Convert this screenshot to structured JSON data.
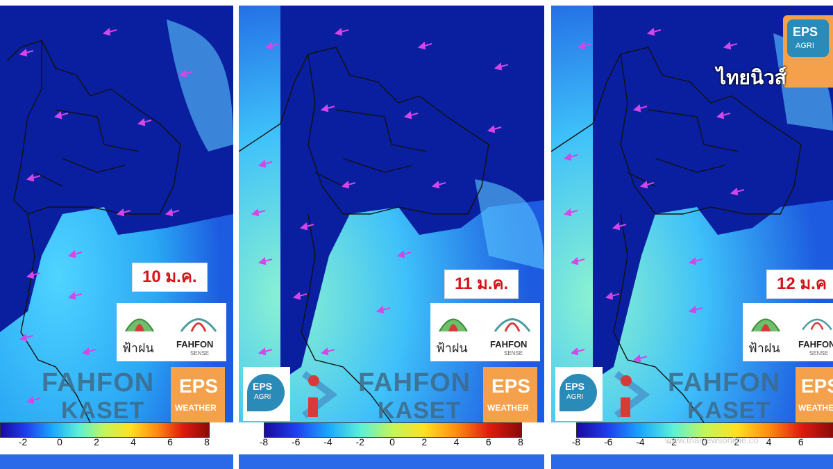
{
  "panels": [
    {
      "date": "10 ม.ค.",
      "partial_date": false
    },
    {
      "date": "11 ม.ค.",
      "partial_date": false
    },
    {
      "date": "12 ม.ค",
      "partial_date": true
    }
  ],
  "logos": {
    "fahfon_thai": "ฟ้าฝน",
    "fahfon_en": "FAHFON",
    "fahfon_sense": "SENSE",
    "kaset_line1": "FAHFON",
    "kaset_line2": "KASET",
    "eps": "EPS",
    "eps_weather": "WEATHER",
    "eps_agri": "AGRI"
  },
  "colorbar": {
    "ticks": [
      "-8",
      "-6",
      "-4",
      "-2",
      "0",
      "2",
      "4",
      "6",
      "8"
    ],
    "colors": [
      "#1a0aa0",
      "#1f3ff0",
      "#1aa8ff",
      "#5cf0d8",
      "#c4f55a",
      "#ffe020",
      "#ff8a10",
      "#e01a10",
      "#8a0a08"
    ]
  },
  "brand": {
    "tnews": "ไทยนิวส์"
  },
  "watermark": "www.thainewsonline.co",
  "colors": {
    "arrow": "#d546e8",
    "date_text": "#d4141b",
    "border": "#111111"
  }
}
